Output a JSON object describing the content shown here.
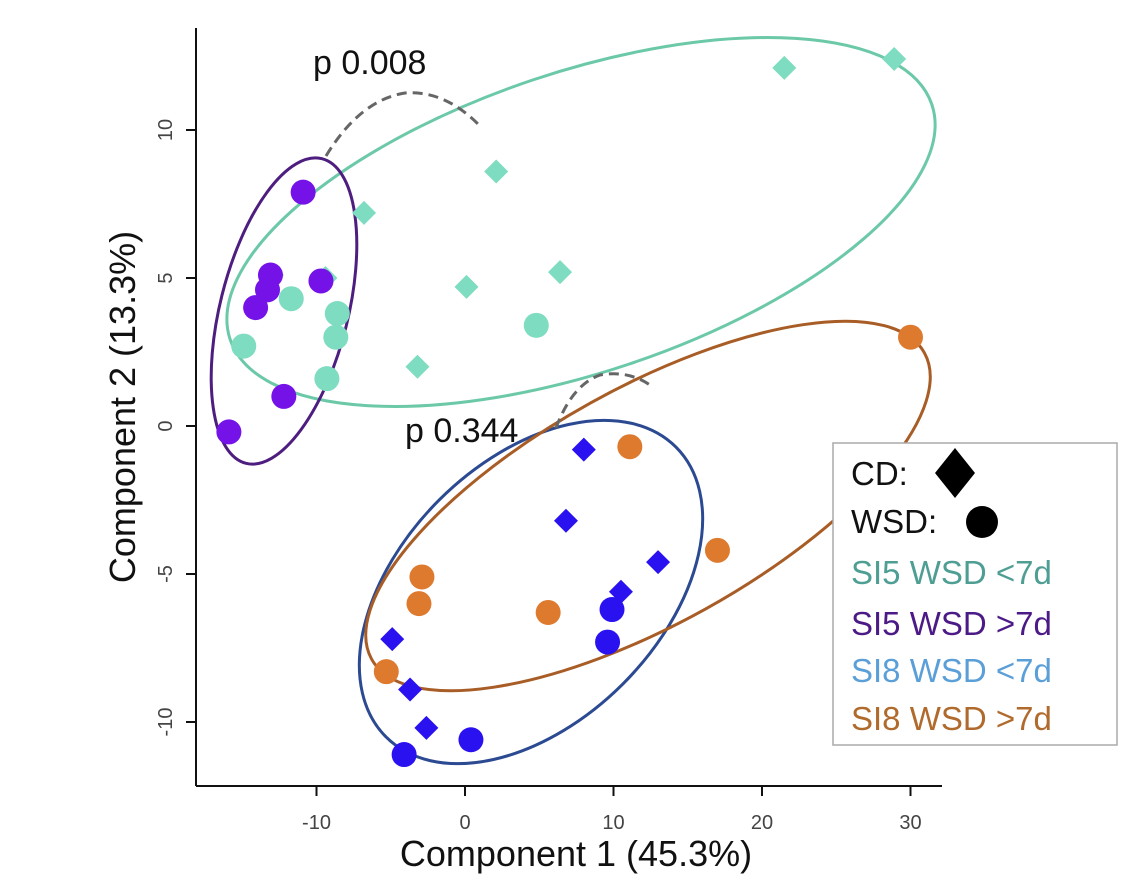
{
  "chart_data": {
    "type": "scatter",
    "xlabel": "Component 1 (45.3%)",
    "ylabel": "Component 2 (13.3%)",
    "xlim": [
      -18,
      32
    ],
    "ylim": [
      -12.3,
      13.5
    ],
    "xticks": [
      -10,
      0,
      10,
      20,
      30
    ],
    "yticks": [
      -10,
      -5,
      0,
      5,
      10
    ],
    "xtick_labels": [
      "-10",
      "0",
      "10",
      "20",
      "30"
    ],
    "ytick_labels": [
      "-10",
      "-5",
      "0",
      "5",
      "10"
    ],
    "grid": false,
    "legend": {
      "position": "right",
      "shape_entries": [
        {
          "label": "CD:",
          "marker": "diamond"
        },
        {
          "label": "WSD:",
          "marker": "circle"
        }
      ],
      "group_entries": [
        "SI5 WSD <7d",
        "SI5 WSD >7d",
        "SI8 WSD <7d",
        "SI8 WSD >7d"
      ]
    },
    "series": [
      {
        "name": "SI5 WSD <7d",
        "color": "#7EDCC0",
        "ellipse_color": "#6CC9A8",
        "diamonds": [
          [
            21.5,
            12.1
          ],
          [
            28.9,
            12.4
          ],
          [
            2.1,
            8.6
          ],
          [
            -6.8,
            7.2
          ],
          [
            6.4,
            5.2
          ],
          [
            0.1,
            4.7
          ],
          [
            -3.2,
            2.0
          ],
          [
            -9.4,
            5.0
          ],
          [
            -13.0,
            5.1
          ]
        ],
        "circles": [
          [
            -11.7,
            4.3
          ],
          [
            -14.9,
            2.7
          ],
          [
            -8.6,
            3.8
          ],
          [
            -8.7,
            3.0
          ],
          [
            -9.3,
            1.6
          ],
          [
            4.8,
            3.4
          ]
        ]
      },
      {
        "name": "SI5 WSD >7d",
        "color": "#7412E8",
        "ellipse_color": "#4E1D80",
        "diamonds": [],
        "circles": [
          [
            -10.9,
            7.9
          ],
          [
            -13.1,
            5.1
          ],
          [
            -13.3,
            4.6
          ],
          [
            -9.7,
            4.9
          ],
          [
            -14.1,
            4.0
          ],
          [
            -12.2,
            1.0
          ],
          [
            -15.9,
            -0.2
          ]
        ]
      },
      {
        "name": "SI8 WSD <7d",
        "color": "#2A12F0",
        "ellipse_color": "#2B4A92",
        "diamonds": [
          [
            8.0,
            -0.8
          ],
          [
            6.8,
            -3.2
          ],
          [
            13.0,
            -4.6
          ],
          [
            10.5,
            -5.6
          ],
          [
            -4.9,
            -7.2
          ],
          [
            -3.7,
            -8.9
          ],
          [
            -2.6,
            -10.2
          ]
        ],
        "circles": [
          [
            9.9,
            -6.2
          ],
          [
            9.6,
            -7.3
          ],
          [
            0.4,
            -10.6
          ],
          [
            -4.1,
            -11.1
          ]
        ]
      },
      {
        "name": "SI8 WSD >7d",
        "color": "#DE7A2E",
        "ellipse_color": "#A95D26",
        "diamonds": [],
        "circles": [
          [
            11.1,
            -0.7
          ],
          [
            17.0,
            -4.2
          ],
          [
            -2.9,
            -5.1
          ],
          [
            -3.1,
            -6.0
          ],
          [
            5.6,
            -6.3
          ],
          [
            -5.3,
            -8.3
          ],
          [
            30.0,
            3.0
          ]
        ]
      }
    ],
    "annotations": [
      {
        "text": "p 0.008"
      },
      {
        "text": "p 0.344"
      }
    ]
  }
}
